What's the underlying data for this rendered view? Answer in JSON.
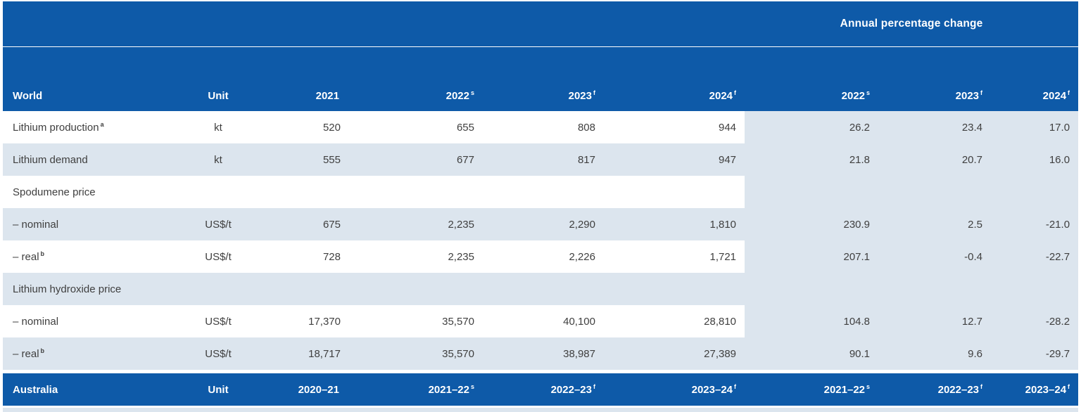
{
  "colors": {
    "header_blue": "#0e5aa8",
    "stripe_blue": "#dce5ee",
    "body_text": "#3f3f3f"
  },
  "header": {
    "apc_label": "Annual percentage change",
    "world": {
      "label": "World",
      "unit": "Unit",
      "year_cols": [
        {
          "text": "2021",
          "sup": ""
        },
        {
          "text": "2022",
          "sup": "s"
        },
        {
          "text": "2023",
          "sup": "f"
        },
        {
          "text": "2024",
          "sup": "f"
        }
      ],
      "pct_cols": [
        {
          "text": "2022",
          "sup": "s"
        },
        {
          "text": "2023",
          "sup": "f"
        },
        {
          "text": "2024",
          "sup": "f"
        }
      ]
    }
  },
  "rows": [
    {
      "kind": "data",
      "label": "Lithium production",
      "label_sup": "a",
      "unit": "kt",
      "values": [
        "520",
        "655",
        "808",
        "944"
      ],
      "pct": [
        "26.2",
        "23.4",
        "17.0"
      ],
      "shade": false
    },
    {
      "kind": "data",
      "label": "Lithium demand",
      "label_sup": "",
      "unit": "kt",
      "values": [
        "555",
        "677",
        "817",
        "947"
      ],
      "pct": [
        "21.8",
        "20.7",
        "16.0"
      ],
      "shade": true
    },
    {
      "kind": "section",
      "label": "Spodumene price",
      "label_sup": "",
      "unit": "",
      "values": [
        "",
        "",
        "",
        ""
      ],
      "pct": [
        "",
        "",
        ""
      ],
      "shade": false
    },
    {
      "kind": "data",
      "label": "– nominal",
      "label_sup": "",
      "unit": "US$/t",
      "values": [
        "675",
        "2,235",
        "2,290",
        "1,810"
      ],
      "pct": [
        "230.9",
        "2.5",
        "-21.0"
      ],
      "shade": true
    },
    {
      "kind": "data",
      "label": "– real",
      "label_sup": "b",
      "unit": "US$/t",
      "values": [
        "728",
        "2,235",
        "2,226",
        "1,721"
      ],
      "pct": [
        "207.1",
        "-0.4",
        "-22.7"
      ],
      "shade": false
    },
    {
      "kind": "section",
      "label": "Lithium hydroxide price",
      "label_sup": "",
      "unit": "",
      "values": [
        "",
        "",
        "",
        ""
      ],
      "pct": [
        "",
        "",
        ""
      ],
      "shade": true
    },
    {
      "kind": "data",
      "label": "– nominal",
      "label_sup": "",
      "unit": "US$/t",
      "values": [
        "17,370",
        "35,570",
        "40,100",
        "28,810"
      ],
      "pct": [
        "104.8",
        "12.7",
        "-28.2"
      ],
      "shade": false
    },
    {
      "kind": "data",
      "label": "– real",
      "label_sup": "b",
      "unit": "US$/t",
      "values": [
        "18,717",
        "35,570",
        "38,987",
        "27,389"
      ],
      "pct": [
        "90.1",
        "9.6",
        "-29.7"
      ],
      "shade": true
    }
  ],
  "footer": {
    "label": "Australia",
    "unit": "Unit",
    "year_cols": [
      {
        "text": "2020–21",
        "sup": ""
      },
      {
        "text": "2021–22",
        "sup": "s"
      },
      {
        "text": "2022–23",
        "sup": "f"
      },
      {
        "text": "2023–24",
        "sup": "f"
      }
    ],
    "pct_cols": [
      {
        "text": "2021–22",
        "sup": "s"
      },
      {
        "text": "2022–23",
        "sup": "f"
      },
      {
        "text": "2023–24",
        "sup": "f"
      }
    ]
  }
}
